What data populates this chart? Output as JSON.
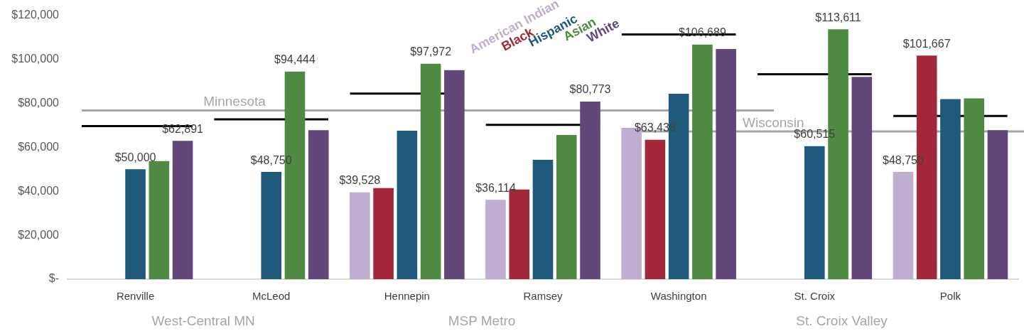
{
  "chart_data": {
    "type": "bar",
    "categories": [
      "Renville",
      "McLeod",
      "Hennepin",
      "Ramsey",
      "Washington",
      "St. Croix",
      "Polk"
    ],
    "series": [
      {
        "name": "American Indian",
        "color": "#bfaecf",
        "values": [
          null,
          null,
          39528,
          36114,
          68800,
          null,
          48750
        ],
        "value_labels": [
          null,
          null,
          "$39,528",
          "$36,114",
          null,
          null,
          "$48,750"
        ]
      },
      {
        "name": "Black",
        "color": "#a0283a",
        "values": [
          null,
          null,
          41400,
          40800,
          63438,
          null,
          101667
        ],
        "value_labels": [
          null,
          null,
          null,
          null,
          "$63,438",
          null,
          "$101,667"
        ]
      },
      {
        "name": "Hispanic",
        "color": "#1f5a7c",
        "values": [
          50000,
          48750,
          67500,
          54300,
          84300,
          60515,
          81900
        ],
        "value_labels": [
          "$50,000",
          "$48,750",
          null,
          null,
          null,
          "$60,515",
          null
        ]
      },
      {
        "name": "Asian",
        "color": "#4e8a41",
        "values": [
          53700,
          94444,
          97972,
          65600,
          106689,
          113611,
          82200
        ],
        "value_labels": [
          null,
          "$94,444",
          "$97,972",
          null,
          "$106,689",
          "$113,611",
          null
        ]
      },
      {
        "name": "White",
        "color": "#62487a",
        "values": [
          62891,
          67800,
          95100,
          80773,
          104700,
          92000,
          67800
        ],
        "value_labels": [
          "$62,891",
          null,
          null,
          "$80,773",
          null,
          null,
          null
        ]
      }
    ],
    "ylim": [
      0,
      120000
    ],
    "yticks": [
      {
        "value": 0,
        "label": "$-"
      },
      {
        "value": 20000,
        "label": "$20,000"
      },
      {
        "value": 40000,
        "label": "$40,000"
      },
      {
        "value": 60000,
        "label": "$60,000"
      },
      {
        "value": 80000,
        "label": "$80,000"
      },
      {
        "value": 100000,
        "label": "$100,000"
      },
      {
        "value": 120000,
        "label": "$120,000"
      }
    ],
    "ref_lines": [
      {
        "axis": "y",
        "value": 76700,
        "label": "Minnesota",
        "color": "#a6a6a6"
      },
      {
        "axis": "y",
        "value": 67200,
        "label": "Wisconsin",
        "color": "#a6a6a6"
      },
      {
        "axis": "y",
        "value": 69600,
        "color": "#000000"
      },
      {
        "axis": "y",
        "value": 72700,
        "color": "#000000"
      },
      {
        "axis": "y",
        "value": 84400,
        "color": "#000000"
      },
      {
        "axis": "y",
        "value": 70200,
        "color": "#000000"
      },
      {
        "axis": "y",
        "value": 111300,
        "color": "#000000"
      },
      {
        "axis": "y",
        "value": 93200,
        "color": "#000000"
      },
      {
        "axis": "y",
        "value": 74200,
        "color": "#000000"
      }
    ],
    "annotations": [
      "West-Central MN",
      "MSP Metro",
      "St. Croix Valley"
    ],
    "legend": "top"
  }
}
